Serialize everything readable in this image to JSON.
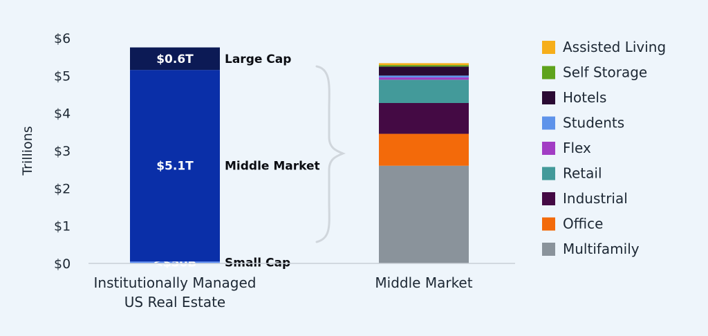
{
  "chart_data": {
    "type": "bar",
    "ylabel": "Trillions",
    "ylim": [
      0,
      6
    ],
    "y_ticks": [
      "$0",
      "$1",
      "$2",
      "$3",
      "$4",
      "$5",
      "$6"
    ],
    "grid": false,
    "legend_position": "right",
    "bars": [
      {
        "category_lines": [
          "Institutionally Managed",
          "US Real Estate"
        ],
        "segments": [
          {
            "name": "Small Cap",
            "value": 0.05,
            "label": "<$50B",
            "color": "#5b8df5"
          },
          {
            "name": "Middle Market",
            "value": 5.1,
            "label": "$5.1T",
            "color": "#0a2fa8"
          },
          {
            "name": "Large Cap",
            "value": 0.6,
            "label": "$0.6T",
            "color": "#0c1a55"
          }
        ]
      },
      {
        "category_lines": [
          "Middle Market"
        ],
        "segments": [
          {
            "name": "Multifamily",
            "value": 2.6,
            "color": "#8a939b"
          },
          {
            "name": "Office",
            "value": 0.85,
            "color": "#f36a0a"
          },
          {
            "name": "Industrial",
            "value": 0.82,
            "color": "#440a44"
          },
          {
            "name": "Retail",
            "value": 0.62,
            "color": "#439a9a"
          },
          {
            "name": "Flex",
            "value": 0.06,
            "color": "#a23dc4"
          },
          {
            "name": "Students",
            "value": 0.05,
            "color": "#5e93ea"
          },
          {
            "name": "Hotels",
            "value": 0.24,
            "color": "#2a0a33"
          },
          {
            "name": "Self Storage",
            "value": 0.04,
            "color": "#5ea31c"
          },
          {
            "name": "Assisted Living",
            "value": 0.05,
            "color": "#f6ae1a"
          }
        ]
      }
    ],
    "legend": [
      {
        "name": "Assisted Living",
        "color": "#f6ae1a"
      },
      {
        "name": "Self Storage",
        "color": "#5ea31c"
      },
      {
        "name": "Hotels",
        "color": "#2a0a33"
      },
      {
        "name": "Students",
        "color": "#5e93ea"
      },
      {
        "name": "Flex",
        "color": "#a23dc4"
      },
      {
        "name": "Retail",
        "color": "#439a9a"
      },
      {
        "name": "Industrial",
        "color": "#440a44"
      },
      {
        "name": "Office",
        "color": "#f36a0a"
      },
      {
        "name": "Multifamily",
        "color": "#8a939b"
      }
    ],
    "bracket_color": "#d0d6dc"
  }
}
